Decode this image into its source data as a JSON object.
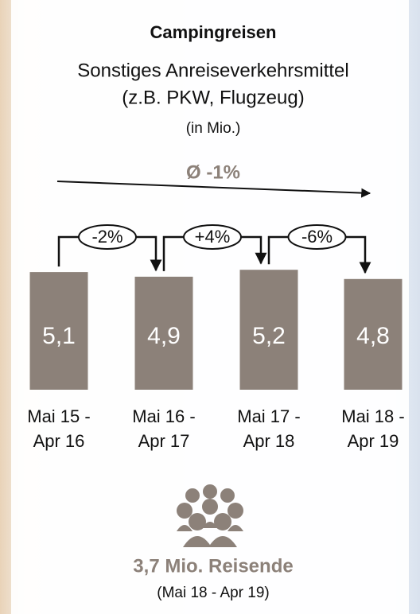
{
  "chart_data": {
    "type": "bar",
    "title": "Campingreisen",
    "subtitle": [
      "Sonstiges Anreiseverkehrsmittel",
      "(z.B. PKW, Flugzeug)"
    ],
    "unit_note": "(in Mio.)",
    "categories": [
      "Mai 15 - Apr 16",
      "Mai 16 - Apr 17",
      "Mai 17 - Apr 18",
      "Mai 18 - Apr 19"
    ],
    "values": [
      5.1,
      4.9,
      5.2,
      4.8
    ],
    "value_labels": [
      "5,1",
      "4,9",
      "5,2",
      "4,8"
    ],
    "color": "#8c8179",
    "ylim": [
      0,
      6
    ],
    "change_labels": [
      "-2%",
      "+4%",
      "-6%"
    ],
    "average_change": "Ø -1%",
    "footer": {
      "title": "3,7 Mio. Reisende",
      "subtitle": "(Mai 18 - Apr 19)"
    }
  }
}
